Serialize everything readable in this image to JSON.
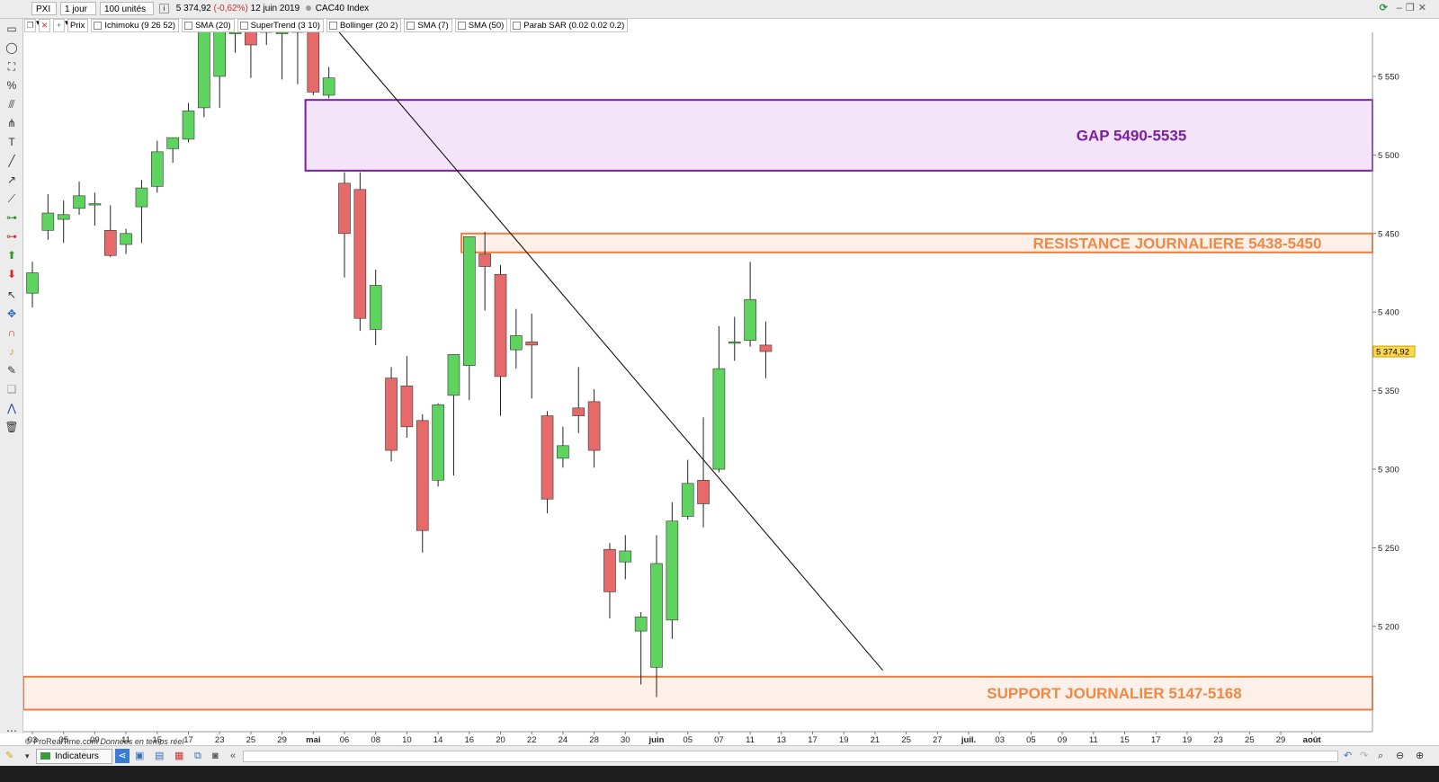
{
  "toolbar": {
    "symbol": "PXI",
    "period": "1 jour",
    "units": "100 unités",
    "last_price": "5 374,92",
    "change": "(-0,62%)",
    "date": "12 juin 2019",
    "instrument": "CAC40 Index"
  },
  "indicators": [
    "Prix",
    "Ichimoku (9 26 52)",
    "SMA (20)",
    "SuperTrend (3 10)",
    "Bollinger (20 2)",
    "SMA (7)",
    "SMA (50)",
    "Parab SAR (0.02 0.02 0.2)"
  ],
  "bottom": {
    "indicators_label": "Indicateurs"
  },
  "credit": {
    "source": "© ProRealTime.com",
    "note": "Données en temps réel"
  },
  "colors": {
    "up": "#5fd35f",
    "down": "#e66a6a",
    "gap_border": "#7b1fa2",
    "gap_fill": "#f3e4f9",
    "gap_text": "#7b1fa2",
    "zone_border": "#f07c3a",
    "zone_fill": "#fdf0e8",
    "zone_text": "#f08846",
    "price_tag": "#ffd84d"
  },
  "chart_data": {
    "type": "candlestick",
    "ylim": [
      5133,
      5578
    ],
    "yticks": [
      5200,
      5250,
      5300,
      5350,
      5400,
      5450,
      5500,
      5550
    ],
    "ytick_labels": [
      "5 200",
      "5 250",
      "5 300",
      "5 350",
      "5 400",
      "5 450",
      "5 500",
      "5 550"
    ],
    "last_value": 5374.92,
    "last_label": "5 374,92",
    "xslots": 85,
    "xticks": [
      {
        "i": 0,
        "label": "03"
      },
      {
        "i": 2,
        "label": "05"
      },
      {
        "i": 4,
        "label": "09"
      },
      {
        "i": 6,
        "label": "11"
      },
      {
        "i": 8,
        "label": "15"
      },
      {
        "i": 10,
        "label": "17"
      },
      {
        "i": 12,
        "label": "23"
      },
      {
        "i": 14,
        "label": "25"
      },
      {
        "i": 16,
        "label": "29"
      },
      {
        "i": 18,
        "label": "mai"
      },
      {
        "i": 20,
        "label": "06"
      },
      {
        "i": 22,
        "label": "08"
      },
      {
        "i": 24,
        "label": "10"
      },
      {
        "i": 26,
        "label": "14"
      },
      {
        "i": 28,
        "label": "16"
      },
      {
        "i": 30,
        "label": "20"
      },
      {
        "i": 32,
        "label": "22"
      },
      {
        "i": 34,
        "label": "24"
      },
      {
        "i": 36,
        "label": "28"
      },
      {
        "i": 38,
        "label": "30"
      },
      {
        "i": 40,
        "label": "juin"
      },
      {
        "i": 42,
        "label": "05"
      },
      {
        "i": 44,
        "label": "07"
      },
      {
        "i": 46,
        "label": "11"
      },
      {
        "i": 48,
        "label": "13"
      },
      {
        "i": 50,
        "label": "17"
      },
      {
        "i": 52,
        "label": "19"
      },
      {
        "i": 54,
        "label": "21"
      },
      {
        "i": 56,
        "label": "25"
      },
      {
        "i": 58,
        "label": "27"
      },
      {
        "i": 60,
        "label": "juil."
      },
      {
        "i": 62,
        "label": "03"
      },
      {
        "i": 64,
        "label": "05"
      },
      {
        "i": 66,
        "label": "09"
      },
      {
        "i": 68,
        "label": "11"
      },
      {
        "i": 70,
        "label": "15"
      },
      {
        "i": 72,
        "label": "17"
      },
      {
        "i": 74,
        "label": "19"
      },
      {
        "i": 76,
        "label": "23"
      },
      {
        "i": 78,
        "label": "25"
      },
      {
        "i": 80,
        "label": "29"
      },
      {
        "i": 82,
        "label": "août"
      }
    ],
    "candles": [
      {
        "o": 5412,
        "h": 5432,
        "l": 5403,
        "c": 5425
      },
      {
        "o": 5452,
        "h": 5475,
        "l": 5446,
        "c": 5463
      },
      {
        "o": 5459,
        "h": 5471,
        "l": 5444,
        "c": 5462
      },
      {
        "o": 5466,
        "h": 5483,
        "l": 5462,
        "c": 5474
      },
      {
        "o": 5469,
        "h": 5476,
        "l": 5455,
        "c": 5469
      },
      {
        "o": 5452,
        "h": 5468,
        "l": 5435,
        "c": 5436
      },
      {
        "o": 5443,
        "h": 5453,
        "l": 5437,
        "c": 5450
      },
      {
        "o": 5467,
        "h": 5484,
        "l": 5444,
        "c": 5479
      },
      {
        "o": 5480,
        "h": 5509,
        "l": 5476,
        "c": 5502
      },
      {
        "o": 5504,
        "h": 5510,
        "l": 5495,
        "c": 5511
      },
      {
        "o": 5510,
        "h": 5533,
        "l": 5508,
        "c": 5528
      },
      {
        "o": 5530,
        "h": 5580,
        "l": 5524,
        "c": 5580
      },
      {
        "o": 5550,
        "h": 5580,
        "l": 5530,
        "c": 5580
      },
      {
        "o": 5578,
        "h": 5580,
        "l": 5565,
        "c": 5578
      },
      {
        "o": 5580,
        "h": 5580,
        "l": 5549,
        "c": 5570
      },
      {
        "o": 5580,
        "h": 5580,
        "l": 5570,
        "c": 5578
      },
      {
        "o": 5578,
        "h": 5580,
        "l": 5548,
        "c": 5578
      },
      {
        "o": 5580,
        "h": 5580,
        "l": 5545,
        "c": 5578
      },
      {
        "o": 5580,
        "h": 5580,
        "l": 5538,
        "c": 5540
      },
      {
        "o": 5538,
        "h": 5556,
        "l": 5536,
        "c": 5549
      },
      {
        "o": 5482,
        "h": 5489,
        "l": 5422,
        "c": 5450
      },
      {
        "o": 5478,
        "h": 5489,
        "l": 5388,
        "c": 5396
      },
      {
        "o": 5389,
        "h": 5427,
        "l": 5379,
        "c": 5417
      },
      {
        "o": 5358,
        "h": 5365,
        "l": 5305,
        "c": 5312
      },
      {
        "o": 5353,
        "h": 5372,
        "l": 5320,
        "c": 5327
      },
      {
        "o": 5331,
        "h": 5335,
        "l": 5247,
        "c": 5261
      },
      {
        "o": 5293,
        "h": 5342,
        "l": 5289,
        "c": 5341
      },
      {
        "o": 5347,
        "h": 5373,
        "l": 5296,
        "c": 5373
      },
      {
        "o": 5366,
        "h": 5448,
        "l": 5344,
        "c": 5448
      },
      {
        "o": 5437,
        "h": 5451,
        "l": 5401,
        "c": 5429
      },
      {
        "o": 5424,
        "h": 5430,
        "l": 5334,
        "c": 5359
      },
      {
        "o": 5376,
        "h": 5402,
        "l": 5364,
        "c": 5385
      },
      {
        "o": 5381,
        "h": 5399,
        "l": 5345,
        "c": 5379
      },
      {
        "o": 5334,
        "h": 5337,
        "l": 5272,
        "c": 5281
      },
      {
        "o": 5307,
        "h": 5327,
        "l": 5301,
        "c": 5315
      },
      {
        "o": 5339,
        "h": 5365,
        "l": 5323,
        "c": 5334
      },
      {
        "o": 5343,
        "h": 5351,
        "l": 5301,
        "c": 5312
      },
      {
        "o": 5249,
        "h": 5253,
        "l": 5205,
        "c": 5222
      },
      {
        "o": 5241,
        "h": 5258,
        "l": 5230,
        "c": 5248
      },
      {
        "o": 5197,
        "h": 5209,
        "l": 5163,
        "c": 5206
      },
      {
        "o": 5174,
        "h": 5258,
        "l": 5155,
        "c": 5240
      },
      {
        "o": 5204,
        "h": 5279,
        "l": 5192,
        "c": 5267
      },
      {
        "o": 5270,
        "h": 5306,
        "l": 5268,
        "c": 5291
      },
      {
        "o": 5293,
        "h": 5333,
        "l": 5263,
        "c": 5278
      },
      {
        "o": 5300,
        "h": 5391,
        "l": 5298,
        "c": 5364
      },
      {
        "o": 5381,
        "h": 5397,
        "l": 5369,
        "c": 5381
      },
      {
        "o": 5382,
        "h": 5432,
        "l": 5378,
        "c": 5408
      },
      {
        "o": 5379,
        "h": 5394,
        "l": 5358,
        "c": 5374.92
      }
    ],
    "trendline": {
      "from": [
        19.5,
        5580
      ],
      "to": [
        54.5,
        5172
      ]
    },
    "zones": [
      {
        "top": 5535,
        "bottom": 5490,
        "x_from": 17.5,
        "label": "GAP 5490-5535",
        "style": "gap"
      },
      {
        "top": 5450,
        "bottom": 5438,
        "x_from": 27.5,
        "label": "RESISTANCE JOURNALIERE 5438-5450",
        "style": "zone"
      },
      {
        "top": 5168,
        "bottom": 5147,
        "x_from": -2,
        "label": "SUPPORT JOURNALIER 5147-5168",
        "style": "zone"
      }
    ]
  }
}
